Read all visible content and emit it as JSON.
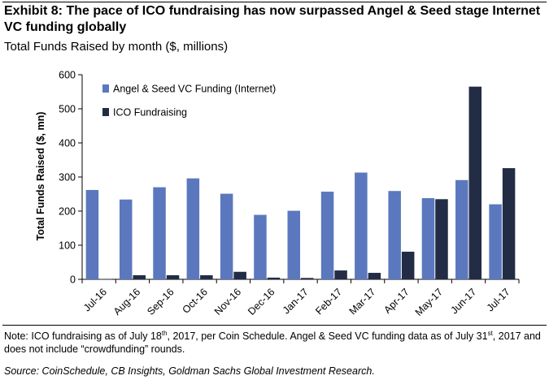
{
  "title": "Exhibit 8: The pace of ICO fundraising has now surpassed Angel & Seed stage Internet VC funding globally",
  "subtitle": "Total Funds Raised by month ($, millions)",
  "note": {
    "part1": "Note: ICO fundraising as of July 18",
    "sup1": "th",
    "part2": ", 2017, per Coin Schedule. Angel & Seed VC funding data as of July 31",
    "sup2": "st",
    "part3": ", 2017 and does not include “crowdfunding” rounds."
  },
  "source": "Source: CoinSchedule, CB Insights, Goldman Sachs Global Investment Research.",
  "chart_data": {
    "type": "bar",
    "ylabel": "Total Funds Raised ($, mn)",
    "xlabel": "",
    "ylim": [
      0,
      600
    ],
    "yticks": [
      "0",
      "100",
      "200",
      "300",
      "400",
      "500",
      "600"
    ],
    "categories": [
      "Jul-16",
      "Aug-16",
      "Sep-16",
      "Oct-16",
      "Nov-16",
      "Dec-16",
      "Jan-17",
      "Feb-17",
      "Mar-17",
      "Apr-17",
      "May-17",
      "Jun-17",
      "Jul-17"
    ],
    "legend_position": "top-left",
    "series": [
      {
        "name": "Angel & Seed VC Funding (Internet)",
        "color": "#5b78be",
        "values": [
          262,
          234,
          270,
          296,
          251,
          189,
          201,
          257,
          313,
          259,
          238,
          291,
          220
        ]
      },
      {
        "name": "ICO Fundraising",
        "color": "#222c45",
        "values": [
          1,
          12,
          12,
          12,
          22,
          5,
          4,
          26,
          19,
          81,
          235,
          565,
          326
        ]
      }
    ]
  }
}
